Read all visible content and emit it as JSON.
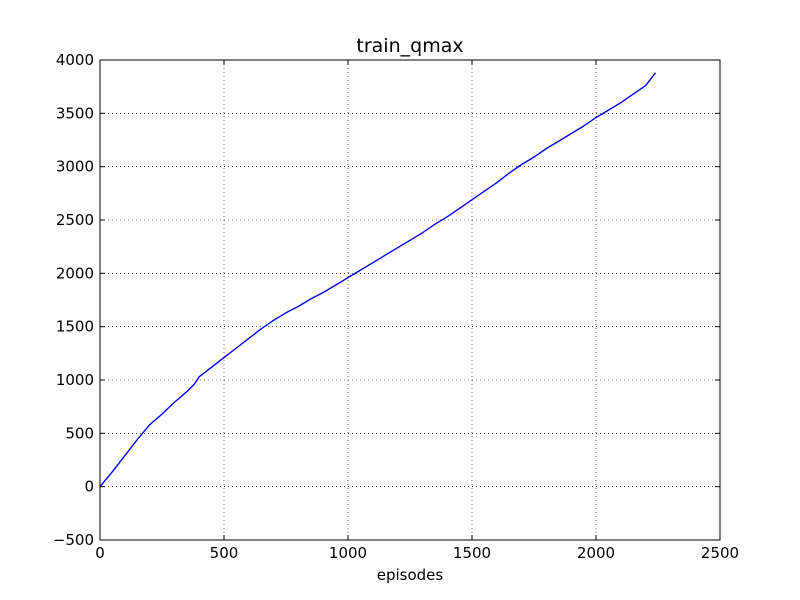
{
  "chart_data": {
    "type": "line",
    "title": "train_qmax",
    "xlabel": "episodes",
    "ylabel": "",
    "xlim": [
      0,
      2500
    ],
    "ylim": [
      -500,
      4000
    ],
    "xticks": [
      0,
      500,
      1000,
      1500,
      2000,
      2500
    ],
    "yticks": [
      -500,
      0,
      500,
      1000,
      1500,
      2000,
      2500,
      3000,
      3500,
      4000
    ],
    "xtick_labels": [
      "0",
      "500",
      "1000",
      "1500",
      "2000",
      "2500"
    ],
    "ytick_labels": [
      "−500",
      "0",
      "500",
      "1000",
      "1500",
      "2000",
      "2500",
      "3000",
      "3500",
      "4000"
    ],
    "grid": true,
    "legend": "none",
    "series": [
      {
        "color": "#0000ff",
        "x": [
          0,
          50,
          100,
          150,
          200,
          250,
          300,
          350,
          380,
          400,
          450,
          500,
          550,
          600,
          650,
          700,
          750,
          800,
          850,
          900,
          950,
          1000,
          1050,
          1100,
          1150,
          1200,
          1250,
          1300,
          1350,
          1400,
          1450,
          1500,
          1550,
          1600,
          1650,
          1700,
          1750,
          1800,
          1850,
          1900,
          1950,
          2000,
          2050,
          2100,
          2150,
          2200,
          2240
        ],
        "y": [
          0,
          140,
          290,
          440,
          580,
          680,
          790,
          890,
          960,
          1030,
          1120,
          1210,
          1300,
          1390,
          1480,
          1560,
          1630,
          1690,
          1760,
          1820,
          1890,
          1960,
          2030,
          2100,
          2170,
          2240,
          2310,
          2380,
          2460,
          2530,
          2610,
          2690,
          2770,
          2850,
          2940,
          3020,
          3090,
          3170,
          3240,
          3310,
          3380,
          3460,
          3530,
          3600,
          3680,
          3760,
          3880
        ]
      }
    ]
  }
}
